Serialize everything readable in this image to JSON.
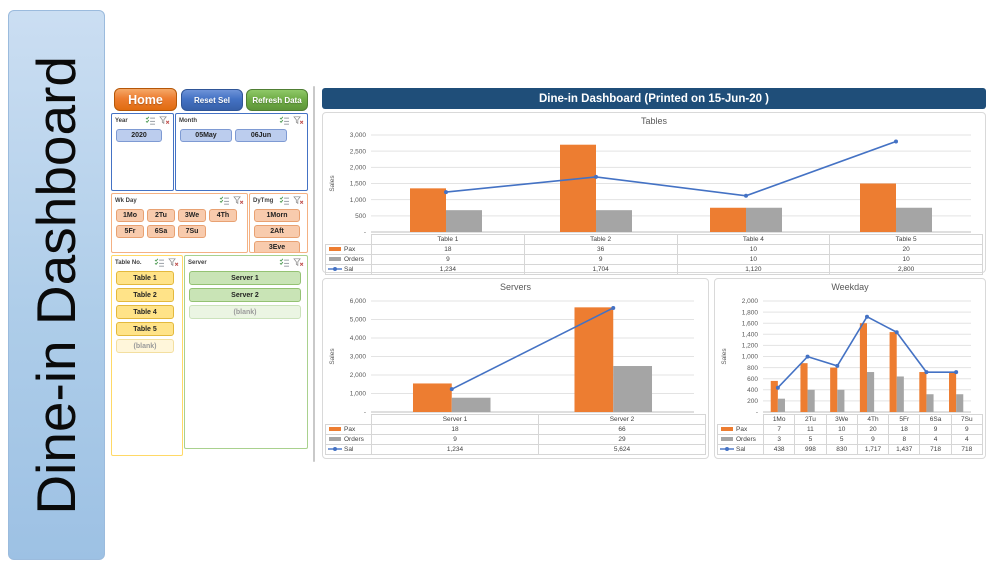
{
  "page": {
    "vertical_title": "Dine-in Dashboard",
    "header_title": "Dine-in Dashboard (Printed on 15-Jun-20 )"
  },
  "toolbar": {
    "home": "Home",
    "reset": "Reset Sel",
    "refresh": "Refresh Data"
  },
  "slicers": [
    {
      "caption": "Year",
      "items": [
        {
          "label": "2020",
          "state": "selected"
        }
      ]
    },
    {
      "caption": "Month",
      "items": [
        {
          "label": "05May",
          "state": "selected"
        },
        {
          "label": "06Jun",
          "state": "selected"
        }
      ]
    },
    {
      "caption": "Wk Day",
      "items": [
        {
          "label": "1Mo",
          "state": "selected"
        },
        {
          "label": "2Tu",
          "state": "selected"
        },
        {
          "label": "3We",
          "state": "selected"
        },
        {
          "label": "4Th",
          "state": "selected"
        },
        {
          "label": "5Fr",
          "state": "selected"
        },
        {
          "label": "6Sa",
          "state": "selected"
        },
        {
          "label": "7Su",
          "state": "selected"
        }
      ]
    },
    {
      "caption": "DyTmg",
      "items": [
        {
          "label": "1Morn",
          "state": "selected"
        },
        {
          "label": "2Aft",
          "state": "selected"
        },
        {
          "label": "3Eve",
          "state": "selected"
        }
      ]
    },
    {
      "caption": "Table No.",
      "items": [
        {
          "label": "Table 1",
          "state": "selected"
        },
        {
          "label": "Table 2",
          "state": "selected"
        },
        {
          "label": "Table 4",
          "state": "selected"
        },
        {
          "label": "Table 5",
          "state": "selected"
        },
        {
          "label": "(blank)",
          "state": "blank"
        }
      ]
    },
    {
      "caption": "Server",
      "items": [
        {
          "label": "Server 1",
          "state": "selected"
        },
        {
          "label": "Server 2",
          "state": "selected"
        },
        {
          "label": "(blank)",
          "state": "blank"
        }
      ]
    }
  ],
  "colors": {
    "accent_orange": "#ED7D31",
    "accent_gray": "#A5A5A5",
    "accent_blue": "#4472C4",
    "header_bar": "#1F4E79",
    "home_button": "#ED7D31",
    "reset_button": "#4472C4",
    "refresh_button": "#70AD47",
    "side_panel": "#AECDE9"
  },
  "chart_data": [
    {
      "id": "tables",
      "type": "bar+line combo with data table",
      "title": "Tables",
      "ylabel": "Sales",
      "categories": [
        "Table 1",
        "Table 2",
        "Table 4",
        "Table 5"
      ],
      "primary_axis": {
        "min": 0,
        "max": 3000,
        "step": 500,
        "tick_labels": [
          "-",
          "500",
          "1,000",
          "1,500",
          "2,000",
          "2,500",
          "3,000"
        ]
      },
      "secondary_axis": {
        "min": 0,
        "max": 40
      },
      "grid": true,
      "legend_position": "table-left",
      "series": [
        {
          "name": "Pax",
          "kind": "bar",
          "axis": "secondary",
          "color": "#ED7D31",
          "values": [
            18,
            36,
            10,
            20
          ],
          "labels": [
            "18",
            "36",
            "10",
            "20"
          ]
        },
        {
          "name": "Orders",
          "kind": "bar",
          "axis": "secondary",
          "color": "#A5A5A5",
          "values": [
            9,
            9,
            10,
            10
          ],
          "labels": [
            "9",
            "9",
            "10",
            "10"
          ]
        },
        {
          "name": "Sal",
          "kind": "line",
          "axis": "primary",
          "color": "#4472C4",
          "values": [
            1234,
            1704,
            1120,
            2800
          ],
          "labels": [
            "1,234",
            "1,704",
            "1,120",
            "2,800"
          ]
        }
      ]
    },
    {
      "id": "servers",
      "type": "bar+line combo with data table",
      "title": "Servers",
      "ylabel": "Sales",
      "categories": [
        "Server 1",
        "Server 2"
      ],
      "primary_axis": {
        "min": 0,
        "max": 6000,
        "step": 1000,
        "tick_labels": [
          "-",
          "1,000",
          "2,000",
          "3,000",
          "4,000",
          "5,000",
          "6,000"
        ]
      },
      "secondary_axis": {
        "min": 0,
        "max": 70
      },
      "grid": true,
      "legend_position": "table-left",
      "series": [
        {
          "name": "Pax",
          "kind": "bar",
          "axis": "secondary",
          "color": "#ED7D31",
          "values": [
            18,
            66
          ],
          "labels": [
            "18",
            "66"
          ]
        },
        {
          "name": "Orders",
          "kind": "bar",
          "axis": "secondary",
          "color": "#A5A5A5",
          "values": [
            9,
            29
          ],
          "labels": [
            "9",
            "29"
          ]
        },
        {
          "name": "Sal",
          "kind": "line",
          "axis": "primary",
          "color": "#4472C4",
          "values": [
            1234,
            5624
          ],
          "labels": [
            "1,234",
            "5,624"
          ]
        }
      ]
    },
    {
      "id": "weekday",
      "type": "bar+line combo with data table",
      "title": "Weekday",
      "ylabel": "Sales",
      "categories": [
        "1Mo",
        "2Tu",
        "3We",
        "4Th",
        "5Fr",
        "6Sa",
        "7Su"
      ],
      "primary_axis": {
        "min": 0,
        "max": 2000,
        "step": 200,
        "tick_labels": [
          "-",
          "200",
          "400",
          "600",
          "800",
          "1,000",
          "1,200",
          "1,400",
          "1,600",
          "1,800",
          "2,000"
        ]
      },
      "secondary_axis": {
        "min": 0,
        "max": 25
      },
      "grid": true,
      "legend_position": "table-left",
      "series": [
        {
          "name": "Pax",
          "kind": "bar",
          "axis": "secondary",
          "color": "#ED7D31",
          "values": [
            7,
            11,
            10,
            20,
            18,
            9,
            9
          ],
          "labels": [
            "7",
            "11",
            "10",
            "20",
            "18",
            "9",
            "9"
          ]
        },
        {
          "name": "Orders",
          "kind": "bar",
          "axis": "secondary",
          "color": "#A5A5A5",
          "values": [
            3,
            5,
            5,
            9,
            8,
            4,
            4
          ],
          "labels": [
            "3",
            "5",
            "5",
            "9",
            "8",
            "4",
            "4"
          ]
        },
        {
          "name": "Sal",
          "kind": "line",
          "axis": "primary",
          "color": "#4472C4",
          "values": [
            438,
            998,
            830,
            1717,
            1437,
            718,
            718
          ],
          "labels": [
            "438",
            "998",
            "830",
            "1,717",
            "1,437",
            "718",
            "718"
          ]
        }
      ]
    }
  ]
}
